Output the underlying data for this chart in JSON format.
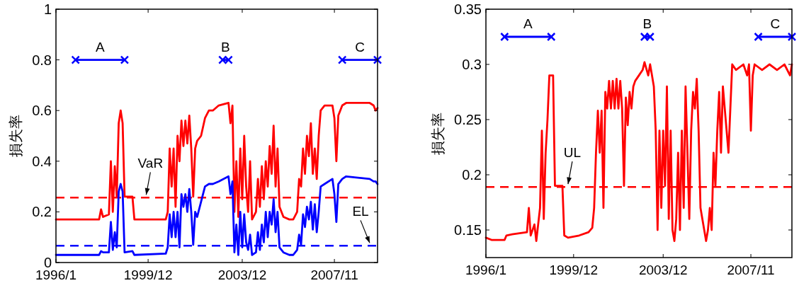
{
  "chart_data": [
    {
      "type": "line",
      "ylabel": "損失率",
      "xlim": [
        "1996-01",
        "2009-09"
      ],
      "ylim": [
        0,
        1
      ],
      "yticks": [
        0,
        0.2,
        0.4,
        0.6,
        0.8,
        1
      ],
      "xticks": [
        {
          "value": "1996-01",
          "label": "1996/1"
        },
        {
          "value": "1999-12",
          "label": "1999/12"
        },
        {
          "value": "2003-12",
          "label": "2003/12"
        },
        {
          "value": "2007-11",
          "label": "2007/11"
        }
      ],
      "grid": false,
      "x": [
        "1996-01",
        "1997-11",
        "1997-12",
        "1998-01",
        "1998-04",
        "1998-05",
        "1998-06",
        "1998-07",
        "1998-08",
        "1998-09",
        "1998-10",
        "1998-11",
        "1998-12",
        "1999-04",
        "1999-05",
        "2000-09",
        "2000-10",
        "2000-11",
        "2000-12",
        "2001-01",
        "2001-02",
        "2001-03",
        "2001-04",
        "2001-05",
        "2001-06",
        "2001-07",
        "2001-08",
        "2001-09",
        "2001-10",
        "2001-11",
        "2001-12",
        "2002-01",
        "2002-03",
        "2002-05",
        "2002-07",
        "2002-09",
        "2002-12",
        "2003-05",
        "2003-06",
        "2003-07",
        "2003-08",
        "2003-09",
        "2003-10",
        "2003-11",
        "2003-12",
        "2004-01",
        "2004-02",
        "2004-03",
        "2004-04",
        "2004-05",
        "2004-07",
        "2004-08",
        "2004-09",
        "2004-10",
        "2004-11",
        "2004-12",
        "2005-01",
        "2005-02",
        "2005-03",
        "2005-04",
        "2005-05",
        "2005-06",
        "2005-07",
        "2005-09",
        "2005-12",
        "2006-02",
        "2006-04",
        "2006-05",
        "2006-06",
        "2006-07",
        "2006-08",
        "2006-09",
        "2006-10",
        "2006-11",
        "2006-12",
        "2007-01",
        "2007-02",
        "2007-03",
        "2007-04",
        "2007-06",
        "2007-10",
        "2007-11",
        "2007-12",
        "2008-01",
        "2008-03",
        "2008-05",
        "2009-05",
        "2009-07",
        "2009-08",
        "2009-09"
      ],
      "series": [
        {
          "type": "line",
          "color": "#ff0000",
          "line_style": "solid",
          "marker": "none",
          "values": [
            0.17,
            0.17,
            0.21,
            0.18,
            0.19,
            0.4,
            0.2,
            0.38,
            0.26,
            0.55,
            0.6,
            0.55,
            0.26,
            0.26,
            0.17,
            0.17,
            0.2,
            0.45,
            0.3,
            0.45,
            0.22,
            0.5,
            0.4,
            0.56,
            0.46,
            0.56,
            0.47,
            0.58,
            0.45,
            0.26,
            0.45,
            0.48,
            0.5,
            0.57,
            0.6,
            0.6,
            0.62,
            0.63,
            0.55,
            0.62,
            0.2,
            0.4,
            0.18,
            0.45,
            0.25,
            0.5,
            0.3,
            0.2,
            0.4,
            0.17,
            0.2,
            0.33,
            0.22,
            0.38,
            0.25,
            0.4,
            0.3,
            0.46,
            0.35,
            0.54,
            0.3,
            0.45,
            0.22,
            0.18,
            0.17,
            0.17,
            0.2,
            0.33,
            0.3,
            0.45,
            0.35,
            0.5,
            0.42,
            0.55,
            0.35,
            0.45,
            0.33,
            0.5,
            0.6,
            0.62,
            0.62,
            0.57,
            0.4,
            0.58,
            0.62,
            0.63,
            0.63,
            0.62,
            0.6,
            0.61
          ]
        },
        {
          "type": "line",
          "color": "#0000ff",
          "line_style": "solid",
          "marker": "none",
          "values": [
            0.03,
            0.03,
            0.045,
            0.04,
            0.04,
            0.16,
            0.05,
            0.12,
            0.06,
            0.28,
            0.31,
            0.28,
            0.04,
            0.045,
            0.03,
            0.035,
            0.06,
            0.19,
            0.1,
            0.2,
            0.1,
            0.2,
            0.06,
            0.27,
            0.22,
            0.27,
            0.2,
            0.29,
            0.2,
            0.07,
            0.2,
            0.18,
            0.24,
            0.3,
            0.31,
            0.31,
            0.32,
            0.34,
            0.27,
            0.32,
            0.04,
            0.15,
            0.03,
            0.2,
            0.06,
            0.19,
            0.08,
            0.05,
            0.11,
            0.03,
            0.04,
            0.12,
            0.05,
            0.15,
            0.08,
            0.2,
            0.1,
            0.2,
            0.15,
            0.25,
            0.12,
            0.2,
            0.06,
            0.04,
            0.03,
            0.03,
            0.05,
            0.11,
            0.07,
            0.19,
            0.14,
            0.22,
            0.17,
            0.24,
            0.13,
            0.23,
            0.12,
            0.2,
            0.3,
            0.31,
            0.33,
            0.27,
            0.16,
            0.31,
            0.33,
            0.34,
            0.33,
            0.32,
            0.32,
            0.31
          ]
        },
        {
          "type": "line",
          "name": "A",
          "color": "#0000ff",
          "line_style": "solid",
          "marker": "cross",
          "x": [
            "1996-11",
            "1998-12"
          ],
          "values": [
            0.8,
            0.8
          ]
        },
        {
          "type": "line",
          "name": "B",
          "color": "#0000ff",
          "line_style": "solid",
          "marker": "cross",
          "x": [
            "2003-02",
            "2003-05"
          ],
          "values": [
            0.8,
            0.8
          ]
        },
        {
          "type": "line",
          "name": "C",
          "color": "#0000ff",
          "line_style": "solid",
          "marker": "cross",
          "x": [
            "2008-03",
            "2009-09"
          ],
          "values": [
            0.8,
            0.8
          ]
        }
      ],
      "ref_lines": [
        {
          "axis": "y",
          "value": 0.256,
          "color": "#ff0000",
          "line_style": "dashed"
        },
        {
          "axis": "y",
          "value": 0.066,
          "color": "#0000ff",
          "line_style": "dashed"
        }
      ],
      "annotations": [
        {
          "text": "VaR",
          "x": "1999-11",
          "y": 0.256
        },
        {
          "text": "EL",
          "x": "2009-05",
          "y": 0.066
        }
      ]
    },
    {
      "type": "line",
      "ylabel": "損失率",
      "xlim": [
        "1996-01",
        "2009-09"
      ],
      "ylim": [
        0.125,
        0.35
      ],
      "yticks": [
        0.15,
        0.2,
        0.25,
        0.3,
        0.35
      ],
      "xticks": [
        {
          "value": "1996-01",
          "label": "1996/1"
        },
        {
          "value": "1999-12",
          "label": "1999/12"
        },
        {
          "value": "2003-12",
          "label": "2003/12"
        },
        {
          "value": "2007-11",
          "label": "2007/11"
        }
      ],
      "grid": false,
      "series": [
        {
          "type": "line",
          "color": "#ff0000",
          "line_style": "solid",
          "marker": "none",
          "x": [
            "1996-01",
            "1996-04",
            "1996-11",
            "1996-12",
            "1997-03",
            "1997-07",
            "1997-11",
            "1997-12",
            "1998-01",
            "1998-03",
            "1998-04",
            "1998-05",
            "1998-06",
            "1998-07",
            "1998-08",
            "1998-09",
            "1998-10",
            "1998-11",
            "1999-01",
            "1999-02",
            "1999-06",
            "1999-07",
            "1999-09",
            "2000-03",
            "2000-08",
            "2000-10",
            "2000-11",
            "2000-12",
            "2001-01",
            "2001-02",
            "2001-03",
            "2001-04",
            "2001-05",
            "2001-06",
            "2001-07",
            "2001-08",
            "2001-09",
            "2001-10",
            "2001-11",
            "2001-12",
            "2002-01",
            "2002-02",
            "2002-03",
            "2002-04",
            "2002-05",
            "2002-06",
            "2002-07",
            "2002-08",
            "2002-09",
            "2002-11",
            "2003-01",
            "2003-02",
            "2003-04",
            "2003-05",
            "2003-06",
            "2003-07",
            "2003-08",
            "2003-09",
            "2003-10",
            "2003-11",
            "2003-12",
            "2004-01",
            "2004-02",
            "2004-03",
            "2004-04",
            "2004-05",
            "2004-06",
            "2004-07",
            "2004-08",
            "2004-09",
            "2004-10",
            "2004-11",
            "2004-12",
            "2005-01",
            "2005-02",
            "2005-03",
            "2005-04",
            "2005-05",
            "2005-06",
            "2005-07",
            "2005-08",
            "2005-09",
            "2005-10",
            "2005-11",
            "2005-12",
            "2006-01",
            "2006-02",
            "2006-03",
            "2006-04",
            "2006-05",
            "2006-06",
            "2006-07",
            "2006-08",
            "2006-09",
            "2006-10",
            "2006-11",
            "2006-12",
            "2007-01",
            "2007-03",
            "2007-07",
            "2007-09",
            "2007-10",
            "2007-11",
            "2007-12",
            "2008-01",
            "2008-05",
            "2008-09",
            "2009-01",
            "2009-05",
            "2009-08",
            "2009-09"
          ],
          "values": [
            0.143,
            0.141,
            0.141,
            0.145,
            0.146,
            0.147,
            0.148,
            0.17,
            0.145,
            0.155,
            0.14,
            0.155,
            0.17,
            0.24,
            0.16,
            0.22,
            0.25,
            0.29,
            0.29,
            0.19,
            0.19,
            0.145,
            0.143,
            0.145,
            0.148,
            0.152,
            0.17,
            0.22,
            0.258,
            0.22,
            0.258,
            0.17,
            0.275,
            0.26,
            0.285,
            0.26,
            0.285,
            0.26,
            0.287,
            0.26,
            0.285,
            0.26,
            0.19,
            0.27,
            0.245,
            0.275,
            0.26,
            0.28,
            0.285,
            0.29,
            0.295,
            0.302,
            0.29,
            0.3,
            0.29,
            0.28,
            0.24,
            0.15,
            0.24,
            0.17,
            0.24,
            0.19,
            0.28,
            0.16,
            0.24,
            0.15,
            0.14,
            0.16,
            0.22,
            0.15,
            0.24,
            0.17,
            0.28,
            0.22,
            0.16,
            0.24,
            0.275,
            0.26,
            0.287,
            0.24,
            0.17,
            0.16,
            0.15,
            0.14,
            0.15,
            0.17,
            0.15,
            0.22,
            0.19,
            0.24,
            0.275,
            0.22,
            0.28,
            0.26,
            0.24,
            0.22,
            0.26,
            0.3,
            0.295,
            0.3,
            0.29,
            0.3,
            0.24,
            0.29,
            0.3,
            0.295,
            0.3,
            0.295,
            0.3,
            0.29,
            0.3
          ]
        },
        {
          "type": "line",
          "name": "A",
          "color": "#0000ff",
          "line_style": "solid",
          "marker": "cross",
          "x": [
            "1996-11",
            "1998-12"
          ],
          "values": [
            0.325,
            0.325
          ]
        },
        {
          "type": "line",
          "name": "B",
          "color": "#0000ff",
          "line_style": "solid",
          "marker": "cross",
          "x": [
            "2003-02",
            "2003-05"
          ],
          "values": [
            0.325,
            0.325
          ]
        },
        {
          "type": "line",
          "name": "C",
          "color": "#0000ff",
          "line_style": "solid",
          "marker": "cross",
          "x": [
            "2008-03",
            "2009-09"
          ],
          "values": [
            0.325,
            0.325
          ]
        }
      ],
      "ref_lines": [
        {
          "axis": "y",
          "value": 0.189,
          "color": "#ff0000",
          "line_style": "dashed"
        }
      ],
      "annotations": [
        {
          "text": "UL",
          "x": "1999-09",
          "y": 0.189
        }
      ]
    }
  ]
}
